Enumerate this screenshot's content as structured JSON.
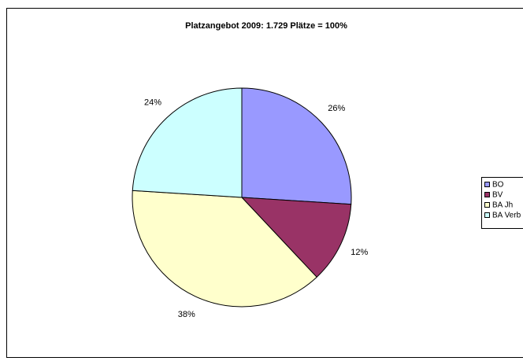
{
  "chart_data": {
    "type": "pie",
    "title": "Platzangebot 2009: 1.729 Plätze = 100%",
    "categories": [
      "BO",
      "BV",
      "BA Jh",
      "BA Verb"
    ],
    "values": [
      26,
      12,
      38,
      24
    ],
    "value_labels": [
      "26%",
      "12%",
      "38%",
      "24%"
    ],
    "colors": [
      "#9999ff",
      "#993366",
      "#ffffcc",
      "#ccffff"
    ],
    "legend": "right"
  }
}
